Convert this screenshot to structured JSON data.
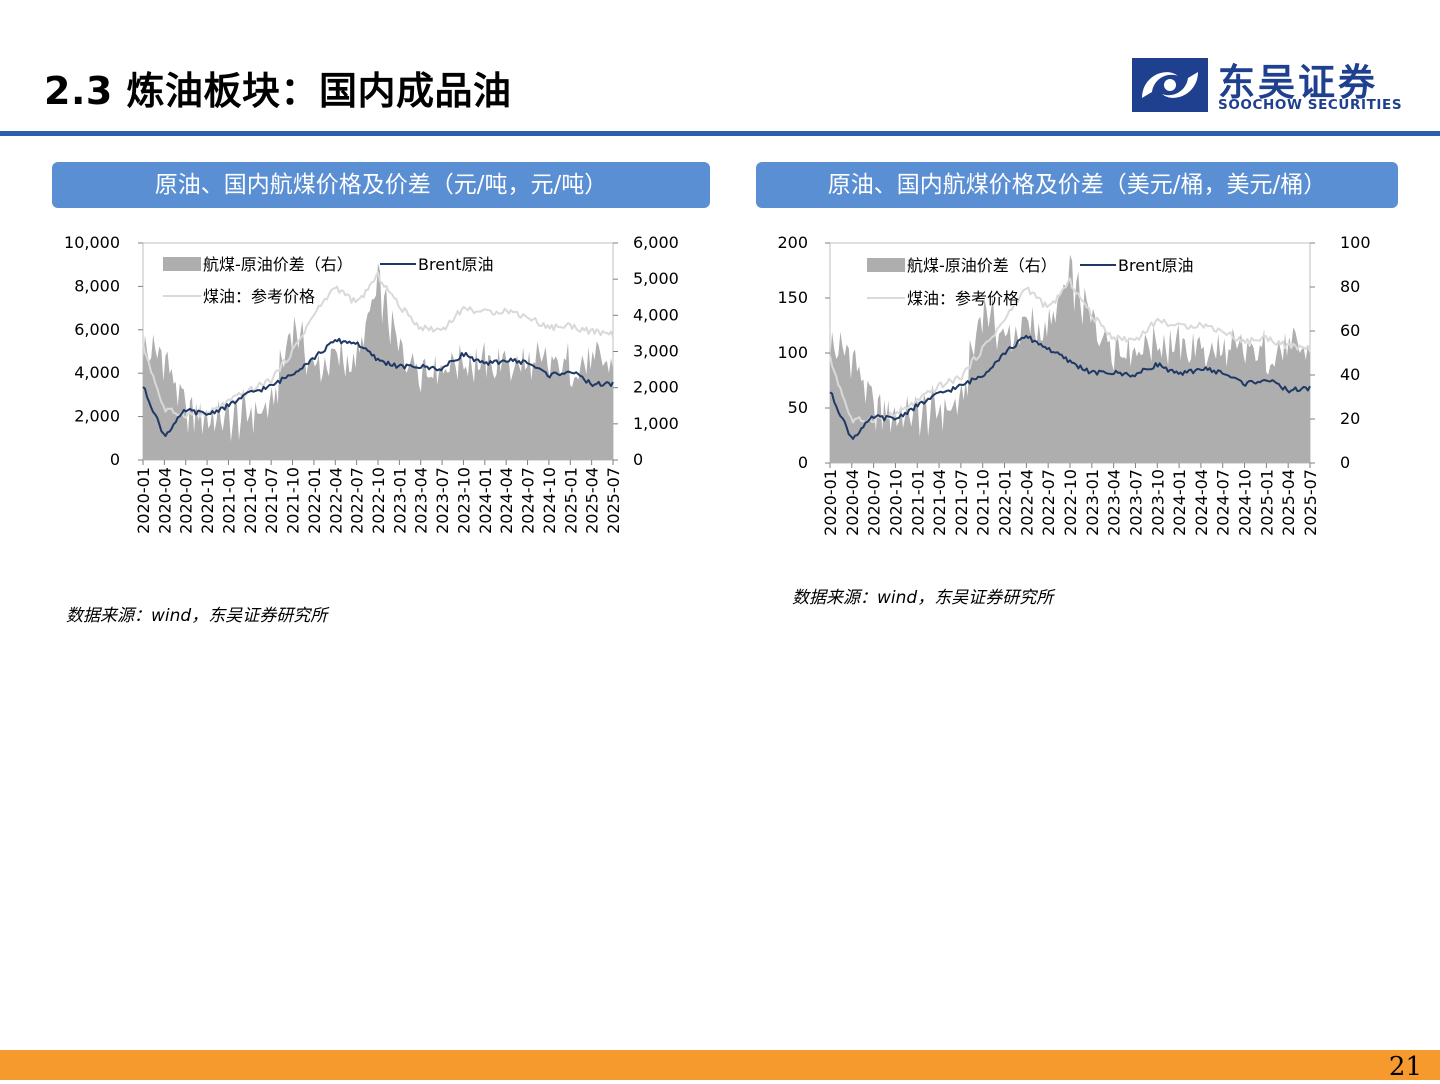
{
  "page": {
    "title": "2.3 炼油板块：国内成品油",
    "logo_cn": "东吴证券",
    "logo_en": "SOOCHOW SECURITIES",
    "page_number": "21",
    "colors": {
      "accent": "#2b5fad",
      "header": "#5b8fd4",
      "footer": "#f79a2e",
      "brand": "#1f3f8f"
    }
  },
  "panels": [
    {
      "header": "原油、国内航煤价格及价差（元/吨，元/吨）",
      "source": "数据来源：wind，东吴证券研究所"
    },
    {
      "header": "原油、国内航煤价格及价差（美元/桶，美元/桶）",
      "source": "数据来源：wind，东吴证券研究所"
    }
  ],
  "chart_data": [
    {
      "type": "line",
      "title": "原油、国内航煤价格及价差（元/吨，元/吨）",
      "x": [
        "2020-01",
        "2020-04",
        "2020-07",
        "2020-10",
        "2021-01",
        "2021-04",
        "2021-07",
        "2021-10",
        "2022-01",
        "2022-04",
        "2022-07",
        "2022-10",
        "2023-01",
        "2023-04",
        "2023-07",
        "2023-10",
        "2024-01",
        "2024-04",
        "2024-07",
        "2024-10",
        "2025-01",
        "2025-04",
        "2025-07"
      ],
      "left_axis": {
        "ylim": [
          0,
          10000
        ],
        "ticks": [
          "0",
          "2,000",
          "4,000",
          "6,000",
          "8,000",
          "10,000"
        ]
      },
      "right_axis": {
        "ylim": [
          0,
          6000
        ],
        "ticks": [
          "0",
          "1,000",
          "2,000",
          "3,000",
          "4,000",
          "5,000",
          "6,000"
        ]
      },
      "legend": [
        "航煤-原油价差（右）",
        "Brent原油",
        "煤油：参考价格"
      ],
      "series": [
        {
          "name": "航煤-原油价差（右）",
          "axis": "right",
          "kind": "area",
          "color": "#aeaeae",
          "values": [
            3000,
            2900,
            1300,
            1200,
            1100,
            1300,
            1400,
            3800,
            2500,
            2800,
            2700,
            4800,
            3000,
            2600,
            2600,
            2800,
            2600,
            2700,
            2600,
            2600,
            2600,
            2700,
            2600
          ]
        },
        {
          "name": "Brent原油",
          "axis": "left",
          "kind": "line",
          "color": "#1f3864",
          "values": [
            3400,
            1100,
            2300,
            2100,
            2500,
            3100,
            3400,
            4000,
            4700,
            5500,
            5400,
            4600,
            4300,
            4300,
            4200,
            4900,
            4400,
            4600,
            4500,
            3900,
            4100,
            3500,
            3500
          ]
        },
        {
          "name": "煤油：参考价格",
          "axis": "left",
          "kind": "line",
          "color": "#d9d9d9",
          "values": [
            5300,
            2300,
            2100,
            2100,
            2700,
            3200,
            3700,
            5000,
            6700,
            8000,
            7200,
            8500,
            7100,
            6100,
            6000,
            7000,
            6800,
            6900,
            6600,
            6100,
            6200,
            5900,
            5800
          ]
        }
      ]
    },
    {
      "type": "line",
      "title": "原油、国内航煤价格及价差（美元/桶，美元/桶）",
      "x": [
        "2020-01",
        "2020-04",
        "2020-07",
        "2020-10",
        "2021-01",
        "2021-04",
        "2021-07",
        "2021-10",
        "2022-01",
        "2022-04",
        "2022-07",
        "2022-10",
        "2023-01",
        "2023-04",
        "2023-07",
        "2023-10",
        "2024-01",
        "2024-04",
        "2024-07",
        "2024-10",
        "2025-01",
        "2025-04",
        "2025-07"
      ],
      "left_axis": {
        "ylim": [
          0,
          200
        ],
        "ticks": [
          "0",
          "50",
          "100",
          "150",
          "200"
        ]
      },
      "right_axis": {
        "ylim": [
          0,
          100
        ],
        "ticks": [
          "0",
          "20",
          "40",
          "60",
          "80",
          "100"
        ]
      },
      "legend": [
        "航煤-原油价差（右）",
        "Brent原油",
        "煤油：参考价格"
      ],
      "series": [
        {
          "name": "航煤-原油价差（右）",
          "axis": "right",
          "kind": "area",
          "color": "#aeaeae",
          "values": [
            52,
            50,
            24,
            22,
            22,
            24,
            26,
            72,
            56,
            62,
            60,
            84,
            64,
            54,
            52,
            56,
            52,
            52,
            50,
            50,
            50,
            52,
            50
          ]
        },
        {
          "name": "Brent原油",
          "axis": "left",
          "kind": "line",
          "color": "#1f3864",
          "values": [
            65,
            22,
            42,
            40,
            52,
            63,
            70,
            80,
            100,
            115,
            104,
            92,
            82,
            82,
            80,
            90,
            80,
            86,
            82,
            72,
            76,
            66,
            68
          ]
        },
        {
          "name": "煤油：参考价格",
          "axis": "left",
          "kind": "line",
          "color": "#d9d9d9",
          "values": [
            95,
            38,
            40,
            44,
            56,
            70,
            78,
            104,
            130,
            160,
            140,
            165,
            134,
            114,
            112,
            130,
            124,
            126,
            120,
            110,
            114,
            106,
            104
          ]
        }
      ]
    }
  ]
}
